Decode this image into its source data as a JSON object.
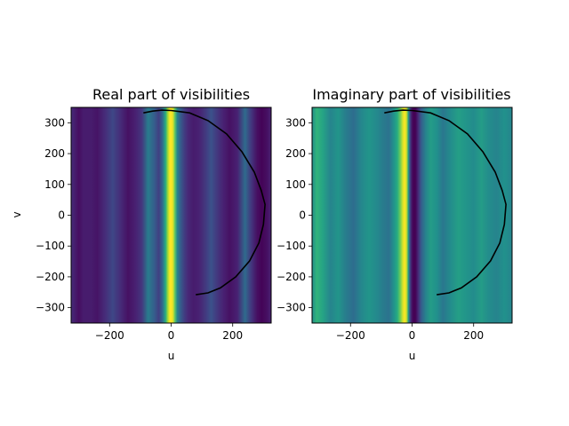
{
  "chart_data": [
    {
      "type": "heatmap",
      "title": "Real part of visibilities",
      "xlabel": "u",
      "ylabel": "v",
      "xlim": [
        -325,
        325
      ],
      "ylim": [
        -350,
        350
      ],
      "xticks": [
        -200,
        0,
        200
      ],
      "yticks": [
        -300,
        -200,
        -100,
        0,
        100,
        200,
        300
      ],
      "colormap": "viridis",
      "grid": false,
      "field": {
        "description": "intensity varies along u only; normalized 0-1 (viridis)",
        "u": [
          -325,
          -300,
          -285,
          -260,
          -240,
          -215,
          -190,
          -165,
          -140,
          -115,
          -95,
          -75,
          -55,
          -40,
          -28,
          -18,
          -10,
          -4,
          0,
          6,
          12,
          20,
          30,
          42,
          55,
          72,
          90,
          110,
          130,
          150,
          170,
          190,
          215,
          240,
          260,
          280,
          295,
          310,
          325
        ],
        "values": [
          0.15,
          0.05,
          0.1,
          0.1,
          0.07,
          0.15,
          0.22,
          0.15,
          0.06,
          0.12,
          0.18,
          0.42,
          0.3,
          0.2,
          0.35,
          0.62,
          0.88,
          1.0,
          1.0,
          0.95,
          0.75,
          0.45,
          0.3,
          0.2,
          0.14,
          0.1,
          0.12,
          0.18,
          0.25,
          0.18,
          0.12,
          0.06,
          0.12,
          0.35,
          0.18,
          0.05,
          0.01,
          0.05,
          0.12
        ]
      },
      "curve": {
        "description": "black arc, center (0, 35), radius ~305",
        "points": [
          [
            -90,
            332
          ],
          [
            -60,
            338
          ],
          [
            -30,
            341
          ],
          [
            0,
            340
          ],
          [
            60,
            332
          ],
          [
            120,
            307
          ],
          [
            180,
            264
          ],
          [
            230,
            206
          ],
          [
            270,
            140
          ],
          [
            293,
            80
          ],
          [
            305,
            35
          ],
          [
            300,
            -30
          ],
          [
            285,
            -90
          ],
          [
            255,
            -148
          ],
          [
            210,
            -200
          ],
          [
            160,
            -236
          ],
          [
            120,
            -252
          ],
          [
            80,
            -258
          ]
        ]
      }
    },
    {
      "type": "heatmap",
      "title": "Imaginary part of visibilities",
      "xlabel": "u",
      "ylabel": "",
      "xlim": [
        -325,
        325
      ],
      "ylim": [
        -350,
        350
      ],
      "xticks": [
        -200,
        0,
        200
      ],
      "yticks": [
        -300,
        -200,
        -100,
        0,
        100,
        200,
        300
      ],
      "colormap": "viridis",
      "grid": false,
      "field": {
        "description": "intensity varies along u only; normalized 0-1 (viridis)",
        "u": [
          -325,
          -310,
          -290,
          -265,
          -240,
          -215,
          -190,
          -165,
          -140,
          -115,
          -95,
          -75,
          -60,
          -48,
          -38,
          -30,
          -24,
          -18,
          -12,
          -6,
          0,
          6,
          12,
          20,
          30,
          45,
          60,
          80,
          100,
          125,
          150,
          175,
          200,
          225,
          250,
          275,
          300,
          325
        ],
        "values": [
          0.48,
          0.65,
          0.58,
          0.45,
          0.52,
          0.42,
          0.36,
          0.46,
          0.52,
          0.47,
          0.42,
          0.38,
          0.5,
          0.62,
          0.78,
          0.94,
          1.0,
          0.92,
          0.55,
          0.2,
          0.05,
          0.0,
          0.02,
          0.15,
          0.3,
          0.45,
          0.55,
          0.5,
          0.4,
          0.48,
          0.56,
          0.52,
          0.48,
          0.55,
          0.48,
          0.45,
          0.5,
          0.45
        ]
      },
      "curve": {
        "description": "black arc, center (0, 35), radius ~305",
        "points": [
          [
            -90,
            332
          ],
          [
            -60,
            338
          ],
          [
            -30,
            341
          ],
          [
            0,
            340
          ],
          [
            60,
            332
          ],
          [
            120,
            307
          ],
          [
            180,
            264
          ],
          [
            230,
            206
          ],
          [
            270,
            140
          ],
          [
            293,
            80
          ],
          [
            305,
            35
          ],
          [
            300,
            -30
          ],
          [
            285,
            -90
          ],
          [
            255,
            -148
          ],
          [
            210,
            -200
          ],
          [
            160,
            -236
          ],
          [
            120,
            -252
          ],
          [
            80,
            -258
          ]
        ]
      }
    }
  ]
}
